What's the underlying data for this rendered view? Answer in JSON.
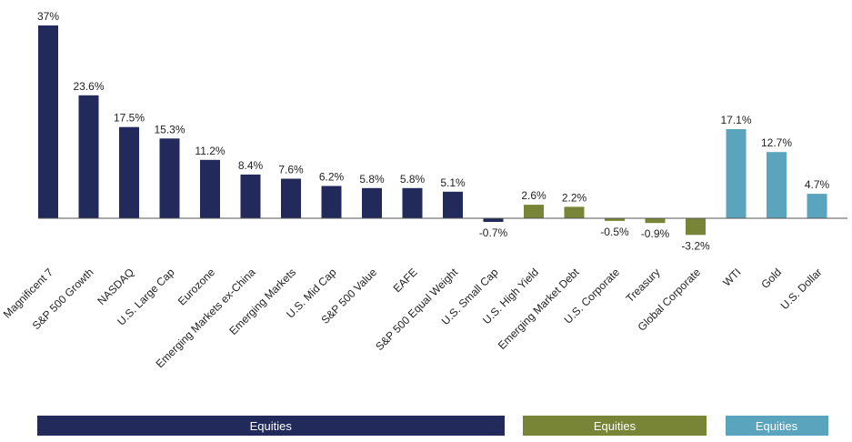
{
  "colors": {
    "equities": "#222a5c",
    "fixed_income": "#788436",
    "other": "#5aa5bd",
    "axis": "#555555",
    "text": "#222222"
  },
  "chart_data": {
    "type": "bar",
    "title": "",
    "xlabel": "",
    "ylabel": "",
    "ylim": [
      -5,
      38
    ],
    "grid": false,
    "categories": [
      "Magnificent 7",
      "S&P 500 Growth",
      "NASDAQ",
      "U.S. Large Cap",
      "Eurozone",
      "Emerging Markets ex-China",
      "Emerging Markets",
      "U.S. Mid Cap",
      "S&P 500 Value",
      "EAFE",
      "S&P 500 Equal Weight",
      "U.S. Small Cap",
      "U.S. High Yield",
      "Emerging Market Debt",
      "U.S. Corporate",
      "Treasury",
      "Global Corporate",
      "WTI",
      "Gold",
      "U.S. Dollar"
    ],
    "values": [
      37,
      23.6,
      17.5,
      15.3,
      11.2,
      8.4,
      7.6,
      6.2,
      5.8,
      5.8,
      5.1,
      -0.7,
      2.6,
      2.2,
      -0.5,
      -0.9,
      -3.2,
      17.1,
      12.7,
      4.7
    ],
    "data_labels": [
      "37%",
      "23.6%",
      "17.5%",
      "15.3%",
      "11.2%",
      "8.4%",
      "7.6%",
      "6.2%",
      "5.8%",
      "5.8%",
      "5.1%",
      "-0.7%",
      "2.6%",
      "2.2%",
      "-0.5%",
      "-0.9%",
      "-3.2%",
      "17.1%",
      "12.7%",
      "4.7%"
    ],
    "groups": [
      "equities",
      "equities",
      "equities",
      "equities",
      "equities",
      "equities",
      "equities",
      "equities",
      "equities",
      "equities",
      "equities",
      "equities",
      "fixed_income",
      "fixed_income",
      "fixed_income",
      "fixed_income",
      "fixed_income",
      "other",
      "other",
      "other"
    ],
    "group_labels": [
      {
        "key": "equities",
        "label": "Equities"
      },
      {
        "key": "fixed_income",
        "label": "Equities"
      },
      {
        "key": "other",
        "label": "Equities"
      }
    ]
  }
}
